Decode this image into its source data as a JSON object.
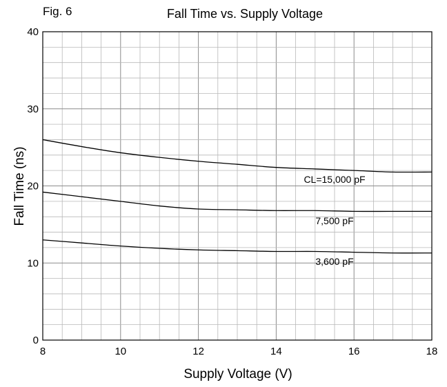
{
  "figure_label": "Fig. 6",
  "chart_data": {
    "type": "line",
    "title": "Fall Time vs. Supply Voltage",
    "xlabel": "Supply Voltage (V)",
    "ylabel": "Fall Time (ns)",
    "xlim": [
      8,
      18
    ],
    "ylim": [
      0,
      40
    ],
    "x_ticks": [
      8,
      10,
      12,
      14,
      16,
      18
    ],
    "y_ticks": [
      0,
      10,
      20,
      30,
      40
    ],
    "x_minor_step": 0.5,
    "y_minor_step": 2,
    "grid": true,
    "legend": "none",
    "series": [
      {
        "name": "CL=15,000 pF",
        "x": [
          8,
          9,
          10,
          11,
          12,
          13,
          14,
          15,
          16,
          17,
          18
        ],
        "values": [
          26.0,
          25.1,
          24.3,
          23.7,
          23.2,
          22.8,
          22.4,
          22.2,
          22.0,
          21.8,
          21.8
        ]
      },
      {
        "name": "7,500 pF",
        "x": [
          8,
          9,
          10,
          11,
          12,
          13,
          14,
          15,
          16,
          17,
          18
        ],
        "values": [
          19.2,
          18.6,
          18.0,
          17.4,
          17.0,
          16.9,
          16.8,
          16.8,
          16.7,
          16.7,
          16.7
        ]
      },
      {
        "name": "3,600 pF",
        "x": [
          8,
          9,
          10,
          11,
          12,
          13,
          14,
          15,
          16,
          17,
          18
        ],
        "values": [
          13.0,
          12.6,
          12.2,
          11.9,
          11.7,
          11.6,
          11.5,
          11.5,
          11.4,
          11.3,
          11.3
        ]
      }
    ]
  }
}
